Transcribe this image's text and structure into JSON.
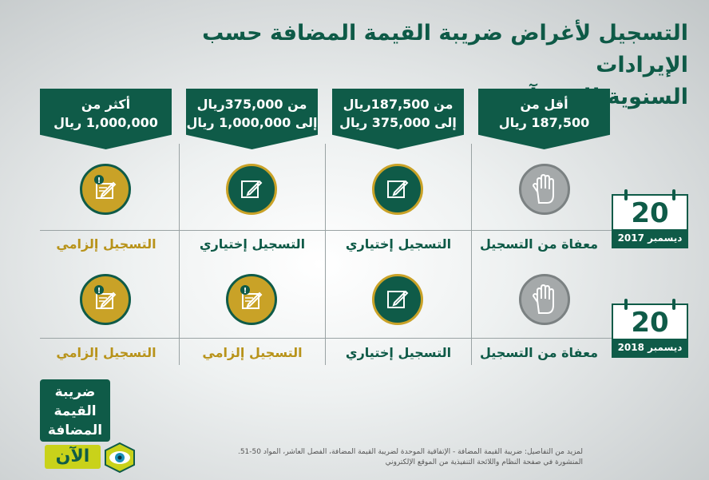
{
  "title": {
    "line1": "التسجيل لأغراض ضريبة القيمة المضافة حسب الإيرادات",
    "line2": "السنوية للمنشآت"
  },
  "headers": [
    {
      "line1": "أقل من",
      "line2": "187,500 ريال"
    },
    {
      "line1": "من 187,500ريال",
      "line2": "إلى 375,000 ريال"
    },
    {
      "line1": "من 375,000ريال",
      "line2": "إلى 1,000,000 ريال"
    },
    {
      "line1": "أكثر من",
      "line2": "1,000,000 ريال"
    }
  ],
  "rows": [
    {
      "calendar": {
        "day": "20",
        "label": "ديسمبر 2017"
      },
      "cells": [
        {
          "label": "معفاة من التسجيل",
          "icon": "hand-icon",
          "status": "exempt"
        },
        {
          "label": "التسجيل إختياري",
          "icon": "edit-icon",
          "status": "optional"
        },
        {
          "label": "التسجيل إختياري",
          "icon": "edit-icon",
          "status": "optional"
        },
        {
          "label": "التسجيل إلزامي",
          "icon": "edit-alert-icon",
          "status": "mandatory"
        }
      ]
    },
    {
      "calendar": {
        "day": "20",
        "label": "ديسمبر 2018"
      },
      "cells": [
        {
          "label": "معفاة من التسجيل",
          "icon": "hand-icon",
          "status": "exempt"
        },
        {
          "label": "التسجيل إختياري",
          "icon": "edit-icon",
          "status": "optional"
        },
        {
          "label": "التسجيل إلزامي",
          "icon": "edit-alert-icon",
          "status": "mandatory"
        },
        {
          "label": "التسجيل إلزامي",
          "icon": "edit-alert-icon",
          "status": "mandatory"
        }
      ]
    }
  ],
  "footer": {
    "line1": "لمزيد من التفاصيل: ضريبة القيمة المضافة - الإتفاقية الموحدة لضريبة القيمة المضافة، الفصل العاشر، المواد 50-51.",
    "line2": "المنشورة في صفحة النظام واللائحة التنفيذية من الموقع الإلكتروني"
  },
  "logo": {
    "line1": "ضريبة",
    "line2": "القيمة",
    "line3": "المضافة",
    "brand": "الآن"
  },
  "colors": {
    "green": "#0f5b48",
    "gold": "#c9a227",
    "grey": "#a5a9aa"
  }
}
